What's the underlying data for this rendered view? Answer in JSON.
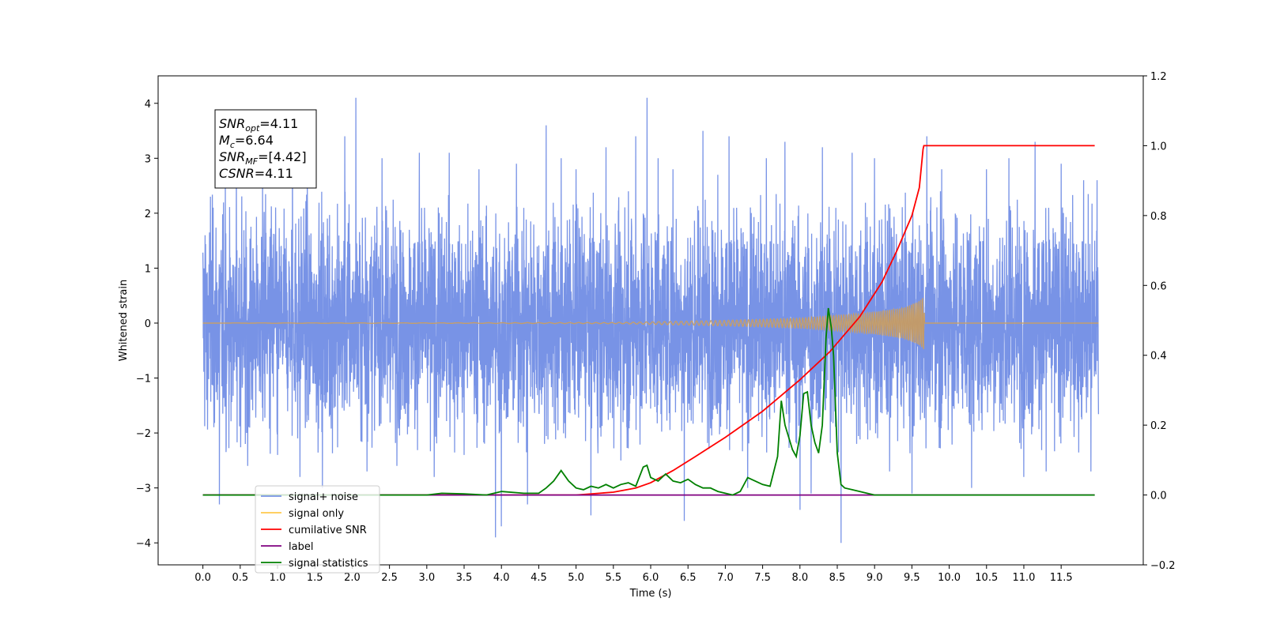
{
  "chart_data": {
    "type": "line",
    "title": "",
    "xlabel": "Time (s)",
    "ylabel": "Whitened strain",
    "y2label": "",
    "xlim": [
      -0.6,
      12.6
    ],
    "ylim": [
      -4.4,
      4.5
    ],
    "y2lim": [
      -0.2,
      1.2
    ],
    "xticks": [
      0.0,
      0.5,
      1.0,
      1.5,
      2.0,
      2.5,
      3.0,
      3.5,
      4.0,
      4.5,
      5.0,
      5.5,
      6.0,
      6.5,
      7.0,
      7.5,
      8.0,
      8.5,
      9.0,
      9.5,
      10.0,
      10.5,
      11.0,
      11.5
    ],
    "xtick_labels": [
      "0.0",
      "0.5",
      "1.0",
      "1.5",
      "2.0",
      "2.5",
      "3.0",
      "3.5",
      "4.0",
      "4.5",
      "5.0",
      "5.5",
      "6.0",
      "6.5",
      "7.0",
      "7.5",
      "8.0",
      "8.5",
      "9.0",
      "9.5",
      "10.0",
      "10.5",
      "11.0",
      "11.5"
    ],
    "yticks": [
      -4,
      -3,
      -2,
      -1,
      0,
      1,
      2,
      3,
      4
    ],
    "ytick_labels": [
      "−4",
      "−3",
      "−2",
      "−1",
      "0",
      "1",
      "2",
      "3",
      "4"
    ],
    "y2ticks": [
      -0.2,
      0.0,
      0.2,
      0.4,
      0.6,
      0.8,
      1.0,
      1.2
    ],
    "y2tick_labels": [
      "−0.2",
      "0.0",
      "0.2",
      "0.4",
      "0.6",
      "0.8",
      "1.0",
      "1.2"
    ],
    "grid": false,
    "legend_position": "bottom-left",
    "annotation": {
      "lines": [
        {
          "base": "SNR",
          "sub": "opt",
          "rest": "=4.11"
        },
        {
          "base": "M",
          "sub": "c",
          "rest": "=6.64"
        },
        {
          "base": "SNR",
          "sub": "MF",
          "rest": "=[4.42]"
        },
        {
          "base": "CSNR",
          "sub": "",
          "rest": "=4.11"
        }
      ]
    },
    "series": [
      {
        "name": "signal+ noise",
        "axis": "left",
        "color": "#7893e6",
        "kind": "noise",
        "t_range": [
          0.0,
          12.0
        ],
        "envelope_typical": 2.2,
        "spikes": [
          [
            0.03,
            1.6
          ],
          [
            0.05,
            -1.4
          ],
          [
            0.1,
            2.3
          ],
          [
            0.22,
            -3.3
          ],
          [
            0.3,
            2.6
          ],
          [
            0.45,
            2.9
          ],
          [
            0.6,
            -2.6
          ],
          [
            0.8,
            3.0
          ],
          [
            1.0,
            -2.4
          ],
          [
            1.2,
            3.2
          ],
          [
            1.3,
            -2.8
          ],
          [
            1.4,
            2.5
          ],
          [
            1.6,
            -3.0
          ],
          [
            1.9,
            3.4
          ],
          [
            2.05,
            4.1
          ],
          [
            2.2,
            -2.7
          ],
          [
            2.4,
            3.0
          ],
          [
            2.6,
            -2.6
          ],
          [
            2.9,
            3.1
          ],
          [
            3.1,
            -2.8
          ],
          [
            3.3,
            3.1
          ],
          [
            3.5,
            -2.4
          ],
          [
            3.7,
            2.8
          ],
          [
            3.92,
            -3.9
          ],
          [
            4.0,
            -3.7
          ],
          [
            4.2,
            2.9
          ],
          [
            4.35,
            -3.3
          ],
          [
            4.6,
            3.6
          ],
          [
            4.8,
            3.0
          ],
          [
            5.0,
            2.8
          ],
          [
            5.2,
            -3.5
          ],
          [
            5.4,
            3.2
          ],
          [
            5.6,
            -2.5
          ],
          [
            5.8,
            3.4
          ],
          [
            5.95,
            4.1
          ],
          [
            6.1,
            3.0
          ],
          [
            6.3,
            2.8
          ],
          [
            6.45,
            -3.6
          ],
          [
            6.7,
            3.5
          ],
          [
            6.9,
            2.7
          ],
          [
            7.05,
            3.4
          ],
          [
            7.3,
            -3.0
          ],
          [
            7.55,
            3.0
          ],
          [
            7.8,
            3.3
          ],
          [
            8.0,
            -3.4
          ],
          [
            8.15,
            -3.1
          ],
          [
            8.3,
            3.2
          ],
          [
            8.55,
            -4.0
          ],
          [
            8.7,
            3.1
          ],
          [
            9.0,
            3.0
          ],
          [
            9.2,
            -2.7
          ],
          [
            9.5,
            -3.1
          ],
          [
            9.7,
            3.4
          ],
          [
            9.9,
            2.8
          ],
          [
            10.3,
            -3.0
          ],
          [
            10.5,
            2.8
          ],
          [
            10.8,
            3.0
          ],
          [
            11.0,
            -2.8
          ],
          [
            11.15,
            3.3
          ],
          [
            11.3,
            -2.7
          ],
          [
            11.5,
            2.9
          ],
          [
            11.8,
            2.6
          ],
          [
            11.9,
            -2.7
          ],
          [
            11.98,
            2.6
          ]
        ]
      },
      {
        "name": "signal only",
        "axis": "left",
        "color": "#ffc94d",
        "kind": "chirp",
        "t_range": [
          0.0,
          12.0
        ],
        "amp_points": [
          [
            0.0,
            0.0
          ],
          [
            5.5,
            0.01
          ],
          [
            7.0,
            0.05
          ],
          [
            8.0,
            0.09
          ],
          [
            8.5,
            0.14
          ],
          [
            9.0,
            0.2
          ],
          [
            9.4,
            0.28
          ],
          [
            9.6,
            0.4
          ],
          [
            9.66,
            0.48
          ],
          [
            9.67,
            0.0
          ],
          [
            12.0,
            0.0
          ]
        ]
      },
      {
        "name": "cumilative SNR",
        "axis": "right",
        "color": "#ff0000",
        "kind": "line",
        "x": [
          0.0,
          5.0,
          5.5,
          5.8,
          6.0,
          6.3,
          6.6,
          7.0,
          7.5,
          8.0,
          8.4,
          8.8,
          9.1,
          9.3,
          9.5,
          9.6,
          9.65,
          9.66,
          12.0
        ],
        "y": [
          0.0,
          0.0,
          0.008,
          0.02,
          0.035,
          0.07,
          0.11,
          0.165,
          0.24,
          0.33,
          0.41,
          0.51,
          0.61,
          0.7,
          0.8,
          0.88,
          0.99,
          1.0,
          1.0
        ]
      },
      {
        "name": "label",
        "axis": "right",
        "color": "#800080",
        "kind": "line",
        "x": [
          0.0,
          12.0
        ],
        "y": [
          0.0,
          0.0
        ]
      },
      {
        "name": "signal statistics",
        "axis": "right",
        "color": "#008000",
        "kind": "line",
        "x": [
          0.0,
          3.0,
          3.2,
          3.5,
          3.8,
          4.0,
          4.3,
          4.5,
          4.6,
          4.7,
          4.8,
          4.9,
          5.0,
          5.1,
          5.2,
          5.3,
          5.4,
          5.5,
          5.6,
          5.7,
          5.8,
          5.9,
          5.95,
          6.0,
          6.1,
          6.2,
          6.3,
          6.4,
          6.5,
          6.6,
          6.7,
          6.8,
          6.9,
          7.0,
          7.1,
          7.2,
          7.3,
          7.4,
          7.5,
          7.6,
          7.7,
          7.75,
          7.8,
          7.9,
          7.95,
          8.0,
          8.05,
          8.1,
          8.15,
          8.2,
          8.25,
          8.3,
          8.35,
          8.38,
          8.42,
          8.45,
          8.5,
          8.55,
          8.6,
          8.7,
          8.9,
          9.0,
          9.3,
          9.5,
          12.0
        ],
        "y": [
          0.0,
          0.0,
          0.005,
          0.003,
          0.0,
          0.01,
          0.005,
          0.005,
          0.02,
          0.04,
          0.07,
          0.04,
          0.02,
          0.015,
          0.025,
          0.02,
          0.03,
          0.02,
          0.03,
          0.035,
          0.025,
          0.08,
          0.085,
          0.05,
          0.04,
          0.06,
          0.04,
          0.035,
          0.045,
          0.03,
          0.02,
          0.02,
          0.01,
          0.005,
          0.0,
          0.01,
          0.05,
          0.04,
          0.03,
          0.025,
          0.11,
          0.27,
          0.2,
          0.13,
          0.11,
          0.17,
          0.29,
          0.295,
          0.2,
          0.15,
          0.12,
          0.2,
          0.45,
          0.535,
          0.48,
          0.4,
          0.12,
          0.03,
          0.02,
          0.015,
          0.005,
          0.0,
          0.0,
          0.0,
          0.0
        ]
      }
    ],
    "overlay_color": "#c19a6b"
  }
}
